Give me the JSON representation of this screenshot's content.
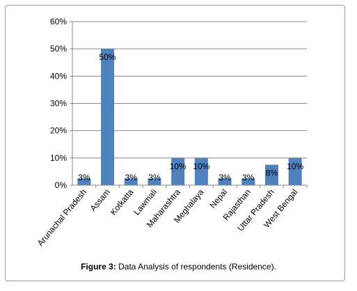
{
  "caption": {
    "label": "Figure 3:",
    "text": "Data Analysis of respondents (Residence)."
  },
  "chart_data": {
    "type": "bar",
    "categories": [
      "Arunachal Pradesh",
      "Assam",
      "Kotkatta",
      "Lawmali",
      "Maharashtra",
      "Meghalaya",
      "Nepal",
      "Rajasthan",
      "Uttar Pradesh",
      "West Bengal"
    ],
    "values": [
      2.5,
      50,
      2.5,
      2.5,
      10,
      10,
      2.5,
      2.5,
      7.5,
      10
    ],
    "data_labels": [
      "3%",
      "50%",
      "3%",
      "3%",
      "10%",
      "10%",
      "3%",
      "3%",
      "8%",
      "10%"
    ],
    "title": "",
    "xlabel": "",
    "ylabel": "",
    "ylim": [
      0,
      60
    ],
    "yticks": [
      0,
      10,
      20,
      30,
      40,
      50,
      60
    ],
    "ytick_labels": [
      "0%",
      "10%",
      "20%",
      "30%",
      "40%",
      "50%",
      "60%"
    ],
    "grid": true,
    "legend": "none",
    "bar_color": "#4f81bd"
  }
}
